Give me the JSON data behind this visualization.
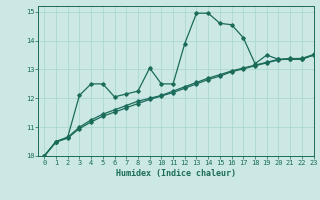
{
  "xlabel": "Humidex (Indice chaleur)",
  "background_color": "#cce8e4",
  "grid_color": "#a8d4cf",
  "line_color": "#1a6b5a",
  "xlim": [
    -0.5,
    23
  ],
  "ylim": [
    10,
    15.2
  ],
  "yticks": [
    10,
    11,
    12,
    13,
    14,
    15
  ],
  "xticks": [
    0,
    1,
    2,
    3,
    4,
    5,
    6,
    7,
    8,
    9,
    10,
    11,
    12,
    13,
    14,
    15,
    16,
    17,
    18,
    19,
    20,
    21,
    22,
    23
  ],
  "line1_x": [
    0,
    1,
    2,
    3,
    4,
    5,
    6,
    7,
    8,
    9,
    10,
    11,
    12,
    13,
    14,
    15,
    16,
    17,
    18,
    19,
    20,
    21,
    22,
    23
  ],
  "line1_y": [
    10.0,
    10.5,
    10.65,
    12.1,
    12.5,
    12.5,
    12.05,
    12.15,
    12.25,
    13.05,
    12.5,
    12.5,
    13.9,
    14.95,
    14.95,
    14.6,
    14.55,
    14.1,
    13.2,
    13.5,
    13.35,
    13.35,
    13.35,
    13.5
  ],
  "line2_x": [
    0,
    1,
    2,
    3,
    4,
    5,
    6,
    7,
    8,
    9,
    10,
    11,
    12,
    13,
    14,
    15,
    16,
    17,
    18,
    19,
    20,
    21,
    22,
    23
  ],
  "line2_y": [
    10.0,
    10.5,
    10.65,
    11.0,
    11.25,
    11.45,
    11.6,
    11.75,
    11.9,
    12.0,
    12.1,
    12.25,
    12.4,
    12.55,
    12.7,
    12.82,
    12.95,
    13.05,
    13.15,
    13.25,
    13.35,
    13.38,
    13.38,
    13.52
  ],
  "line3_x": [
    0,
    1,
    2,
    3,
    4,
    5,
    6,
    7,
    8,
    9,
    10,
    11,
    12,
    13,
    14,
    15,
    16,
    17,
    18,
    19,
    20,
    21,
    22,
    23
  ],
  "line3_y": [
    10.0,
    10.48,
    10.62,
    10.95,
    11.18,
    11.38,
    11.52,
    11.67,
    11.82,
    11.96,
    12.08,
    12.2,
    12.35,
    12.5,
    12.65,
    12.77,
    12.92,
    13.02,
    13.13,
    13.23,
    13.33,
    13.37,
    13.37,
    13.5
  ],
  "marker": "D",
  "marker_size": 1.8,
  "linewidth": 0.9,
  "axis_fontsize": 6,
  "tick_fontsize": 5
}
